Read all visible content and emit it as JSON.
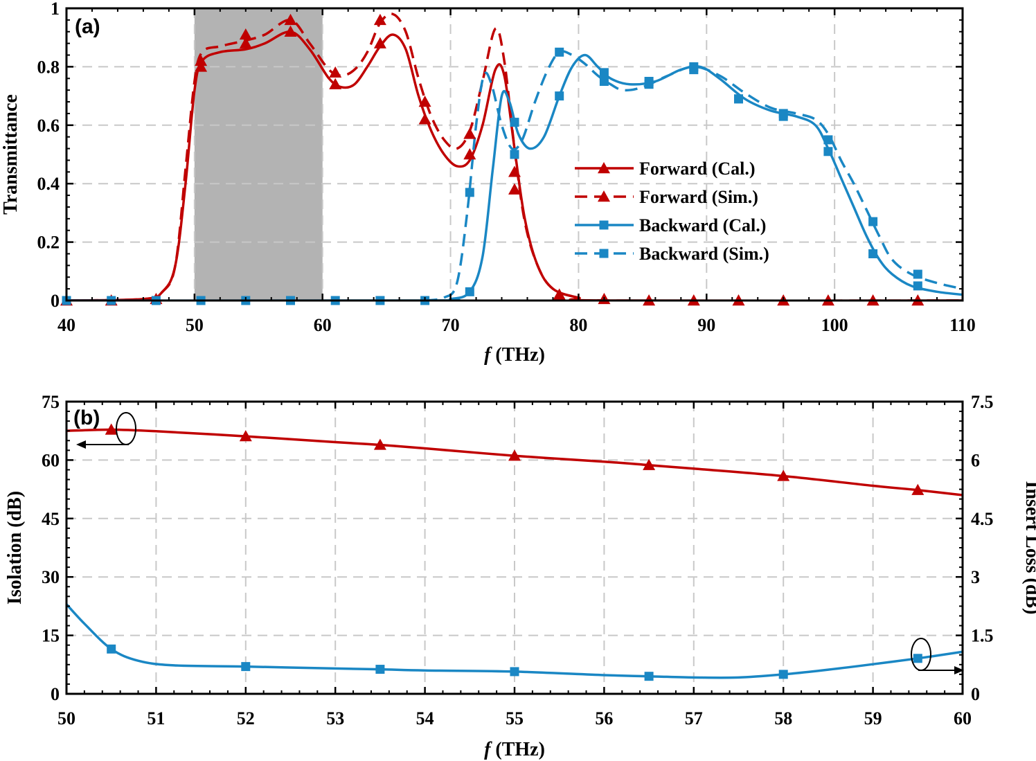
{
  "chart_data": [
    {
      "panel_label": "(a)",
      "type": "line",
      "xlabel_italic": "f",
      "xlabel_rest": " (THz)",
      "ylabel": "Transmittance",
      "xlim": [
        40,
        110
      ],
      "ylim": [
        0,
        1
      ],
      "xticks": [
        "40",
        "50",
        "60",
        "70",
        "80",
        "90",
        "100",
        "110"
      ],
      "yticks": [
        "0",
        "0.2",
        "0.4",
        "0.6",
        "0.8",
        "1"
      ],
      "grid": true,
      "legend_position": "center-right",
      "shaded_band": [
        50,
        60
      ],
      "series": [
        {
          "name": "Forward (Cal.)",
          "style": "solid",
          "marker": "triangle",
          "color": "#c00000",
          "points": [
            [
              40,
              0
            ],
            [
              46,
              0.005
            ],
            [
              47.5,
              0.03
            ],
            [
              48.5,
              0.12
            ],
            [
              49.3,
              0.4
            ],
            [
              50,
              0.72
            ],
            [
              50.6,
              0.82
            ],
            [
              52,
              0.85
            ],
            [
              54,
              0.86
            ],
            [
              55.5,
              0.88
            ],
            [
              57.5,
              0.92
            ],
            [
              59,
              0.86
            ],
            [
              60.5,
              0.76
            ],
            [
              61.5,
              0.73
            ],
            [
              62.5,
              0.74
            ],
            [
              63.5,
              0.8
            ],
            [
              64.5,
              0.87
            ],
            [
              65.5,
              0.91
            ],
            [
              66.5,
              0.86
            ],
            [
              67.5,
              0.7
            ],
            [
              68.5,
              0.58
            ],
            [
              69.5,
              0.5
            ],
            [
              70.5,
              0.46
            ],
            [
              71.5,
              0.48
            ],
            [
              72.5,
              0.6
            ],
            [
              73.5,
              0.79
            ],
            [
              74.2,
              0.77
            ],
            [
              75,
              0.52
            ],
            [
              75.8,
              0.28
            ],
            [
              76.8,
              0.12
            ],
            [
              78,
              0.04
            ],
            [
              80,
              0.01
            ],
            [
              82,
              0
            ],
            [
              110,
              0
            ]
          ],
          "marker_points": [
            [
              40,
              0
            ],
            [
              43.5,
              0
            ],
            [
              47,
              0.005
            ],
            [
              50.5,
              0.8
            ],
            [
              54,
              0.88
            ],
            [
              57.5,
              0.92
            ],
            [
              61,
              0.74
            ],
            [
              64.5,
              0.88
            ],
            [
              68,
              0.62
            ],
            [
              71.5,
              0.5
            ],
            [
              75,
              0.44
            ],
            [
              78.5,
              0.02
            ],
            [
              82,
              0.005
            ],
            [
              85.5,
              0
            ],
            [
              89,
              0
            ],
            [
              92.5,
              0
            ],
            [
              96,
              0
            ],
            [
              99.5,
              0
            ],
            [
              103,
              0
            ],
            [
              106.5,
              0
            ]
          ]
        },
        {
          "name": "Forward (Sim.)",
          "style": "dashed",
          "marker": "triangle",
          "color": "#c00000",
          "points": [
            [
              40,
              0
            ],
            [
              46,
              0.005
            ],
            [
              47.5,
              0.03
            ],
            [
              48.5,
              0.12
            ],
            [
              49.3,
              0.45
            ],
            [
              50,
              0.75
            ],
            [
              50.6,
              0.85
            ],
            [
              52,
              0.87
            ],
            [
              54,
              0.89
            ],
            [
              55.5,
              0.91
            ],
            [
              57.5,
              0.96
            ],
            [
              59,
              0.88
            ],
            [
              60.5,
              0.79
            ],
            [
              61.5,
              0.77
            ],
            [
              62.5,
              0.79
            ],
            [
              63.5,
              0.85
            ],
            [
              64.5,
              0.95
            ],
            [
              65.5,
              0.98
            ],
            [
              66.5,
              0.92
            ],
            [
              67.5,
              0.76
            ],
            [
              68.5,
              0.63
            ],
            [
              69.5,
              0.55
            ],
            [
              70.5,
              0.52
            ],
            [
              71.5,
              0.58
            ],
            [
              72.5,
              0.75
            ],
            [
              73.5,
              0.93
            ],
            [
              74.2,
              0.82
            ],
            [
              75,
              0.52
            ],
            [
              75.8,
              0.27
            ],
            [
              76.8,
              0.12
            ],
            [
              78,
              0.04
            ],
            [
              80,
              0.01
            ],
            [
              82,
              0
            ],
            [
              110,
              0
            ]
          ],
          "marker_points": [
            [
              50.5,
              0.82
            ],
            [
              54,
              0.91
            ],
            [
              57.5,
              0.96
            ],
            [
              61,
              0.78
            ],
            [
              64.5,
              0.96
            ],
            [
              68,
              0.68
            ],
            [
              71.5,
              0.57
            ],
            [
              75,
              0.38
            ]
          ]
        },
        {
          "name": "Backward (Cal.)",
          "style": "solid",
          "marker": "square",
          "color": "#1a87c4",
          "points": [
            [
              40,
              0
            ],
            [
              68,
              0
            ],
            [
              70,
              0.005
            ],
            [
              71.5,
              0.03
            ],
            [
              72.5,
              0.15
            ],
            [
              73.3,
              0.45
            ],
            [
              74,
              0.7
            ],
            [
              74.6,
              0.68
            ],
            [
              75.3,
              0.57
            ],
            [
              76.2,
              0.52
            ],
            [
              77.3,
              0.56
            ],
            [
              78.5,
              0.7
            ],
            [
              79.5,
              0.8
            ],
            [
              80.5,
              0.84
            ],
            [
              81.5,
              0.8
            ],
            [
              82.5,
              0.76
            ],
            [
              84,
              0.74
            ],
            [
              86,
              0.75
            ],
            [
              88,
              0.79
            ],
            [
              89.5,
              0.8
            ],
            [
              91,
              0.76
            ],
            [
              93,
              0.69
            ],
            [
              95,
              0.65
            ],
            [
              97,
              0.63
            ],
            [
              98.5,
              0.6
            ],
            [
              99.5,
              0.52
            ],
            [
              100.5,
              0.42
            ],
            [
              101.5,
              0.32
            ],
            [
              102.5,
              0.22
            ],
            [
              103.5,
              0.14
            ],
            [
              104.5,
              0.09
            ],
            [
              106,
              0.05
            ],
            [
              108,
              0.03
            ],
            [
              110,
              0.02
            ]
          ],
          "marker_points": [
            [
              40,
              0
            ],
            [
              43.5,
              0
            ],
            [
              47,
              0
            ],
            [
              50.5,
              0
            ],
            [
              54,
              0
            ],
            [
              57.5,
              0
            ],
            [
              61,
              0
            ],
            [
              64.5,
              0
            ],
            [
              68,
              0
            ],
            [
              71.5,
              0.03
            ],
            [
              75,
              0.5
            ],
            [
              78.5,
              0.7
            ],
            [
              82,
              0.78
            ],
            [
              85.5,
              0.74
            ],
            [
              89,
              0.8
            ],
            [
              92.5,
              0.69
            ],
            [
              96,
              0.63
            ],
            [
              99.5,
              0.51
            ],
            [
              103,
              0.16
            ],
            [
              106.5,
              0.05
            ]
          ]
        },
        {
          "name": "Backward (Sim.)",
          "style": "dashed",
          "marker": "square",
          "color": "#1a87c4",
          "points": [
            [
              68,
              0
            ],
            [
              69.5,
              0.01
            ],
            [
              70.5,
              0.06
            ],
            [
              71.3,
              0.3
            ],
            [
              72,
              0.6
            ],
            [
              72.6,
              0.77
            ],
            [
              73.2,
              0.74
            ],
            [
              74,
              0.6
            ],
            [
              74.8,
              0.52
            ],
            [
              75.6,
              0.55
            ],
            [
              76.6,
              0.68
            ],
            [
              77.6,
              0.79
            ],
            [
              78.5,
              0.85
            ],
            [
              79.5,
              0.84
            ],
            [
              80.5,
              0.81
            ],
            [
              81.5,
              0.77
            ],
            [
              82.5,
              0.74
            ],
            [
              83.5,
              0.72
            ],
            [
              85,
              0.73
            ],
            [
              87,
              0.77
            ],
            [
              89,
              0.8
            ],
            [
              91,
              0.77
            ],
            [
              93,
              0.71
            ],
            [
              95,
              0.66
            ],
            [
              97,
              0.64
            ],
            [
              98.5,
              0.62
            ],
            [
              99.5,
              0.57
            ],
            [
              100.5,
              0.48
            ],
            [
              101.5,
              0.4
            ],
            [
              102.5,
              0.31
            ],
            [
              103.5,
              0.22
            ],
            [
              104.5,
              0.14
            ],
            [
              106,
              0.09
            ],
            [
              108,
              0.06
            ],
            [
              110,
              0.04
            ]
          ],
          "marker_points": [
            [
              71.5,
              0.37
            ],
            [
              75,
              0.61
            ],
            [
              78.5,
              0.85
            ],
            [
              82,
              0.75
            ],
            [
              85.5,
              0.75
            ],
            [
              89,
              0.79
            ],
            [
              92.5,
              0.69
            ],
            [
              96,
              0.64
            ],
            [
              99.5,
              0.55
            ],
            [
              103,
              0.27
            ],
            [
              106.5,
              0.09
            ]
          ]
        }
      ]
    },
    {
      "panel_label": "(b)",
      "type": "line",
      "xlabel_italic": "f",
      "xlabel_rest": " (THz)",
      "ylabel_left": "Isolation (dB)",
      "ylabel_right": "Insert Loss (dB)",
      "xlim": [
        50,
        60
      ],
      "ylim_left": [
        0,
        75
      ],
      "ylim_right": [
        0,
        7.5
      ],
      "xticks": [
        "50",
        "51",
        "52",
        "53",
        "54",
        "55",
        "56",
        "57",
        "58",
        "59",
        "60"
      ],
      "yticks_left": [
        "0",
        "15",
        "30",
        "45",
        "60",
        "75"
      ],
      "yticks_right": [
        "0",
        "1.5",
        "3",
        "4.5",
        "6",
        "7.5"
      ],
      "grid": true,
      "series": [
        {
          "name": "",
          "axis": "left",
          "style": "solid",
          "marker": "triangle",
          "color": "#c00000",
          "points": [
            [
              50,
              67.5
            ],
            [
              50.5,
              67.8
            ],
            [
              51,
              67.4
            ],
            [
              52,
              66.1
            ],
            [
              53,
              64.6
            ],
            [
              53.5,
              63.9
            ],
            [
              54,
              63
            ],
            [
              55,
              61.1
            ],
            [
              56,
              59.6
            ],
            [
              56.5,
              58.7
            ],
            [
              57,
              57.8
            ],
            [
              58,
              55.9
            ],
            [
              59,
              53.4
            ],
            [
              59.5,
              52.3
            ],
            [
              60,
              51
            ]
          ],
          "marker_points": [
            [
              50.5,
              67.8
            ],
            [
              52,
              66.1
            ],
            [
              53.5,
              63.9
            ],
            [
              55,
              61.1
            ],
            [
              56.5,
              58.7
            ],
            [
              58,
              55.9
            ],
            [
              59.5,
              52.3
            ]
          ]
        },
        {
          "name": "",
          "axis": "right",
          "style": "solid",
          "marker": "square",
          "color": "#1a87c4",
          "points": [
            [
              50,
              2.3
            ],
            [
              50.2,
              1.8
            ],
            [
              50.5,
              1.15
            ],
            [
              50.8,
              0.85
            ],
            [
              51.2,
              0.73
            ],
            [
              52,
              0.7
            ],
            [
              53,
              0.65
            ],
            [
              53.5,
              0.63
            ],
            [
              54,
              0.6
            ],
            [
              55,
              0.57
            ],
            [
              56,
              0.48
            ],
            [
              56.5,
              0.45
            ],
            [
              57,
              0.42
            ],
            [
              57.5,
              0.42
            ],
            [
              58,
              0.5
            ],
            [
              58.5,
              0.62
            ],
            [
              59,
              0.76
            ],
            [
              59.5,
              0.91
            ],
            [
              60,
              1.08
            ]
          ],
          "marker_points": [
            [
              50.5,
              1.15
            ],
            [
              52,
              0.7
            ],
            [
              53.5,
              0.63
            ],
            [
              55,
              0.57
            ],
            [
              56.5,
              0.45
            ],
            [
              58,
              0.5
            ],
            [
              59.5,
              0.91
            ]
          ]
        }
      ]
    }
  ]
}
